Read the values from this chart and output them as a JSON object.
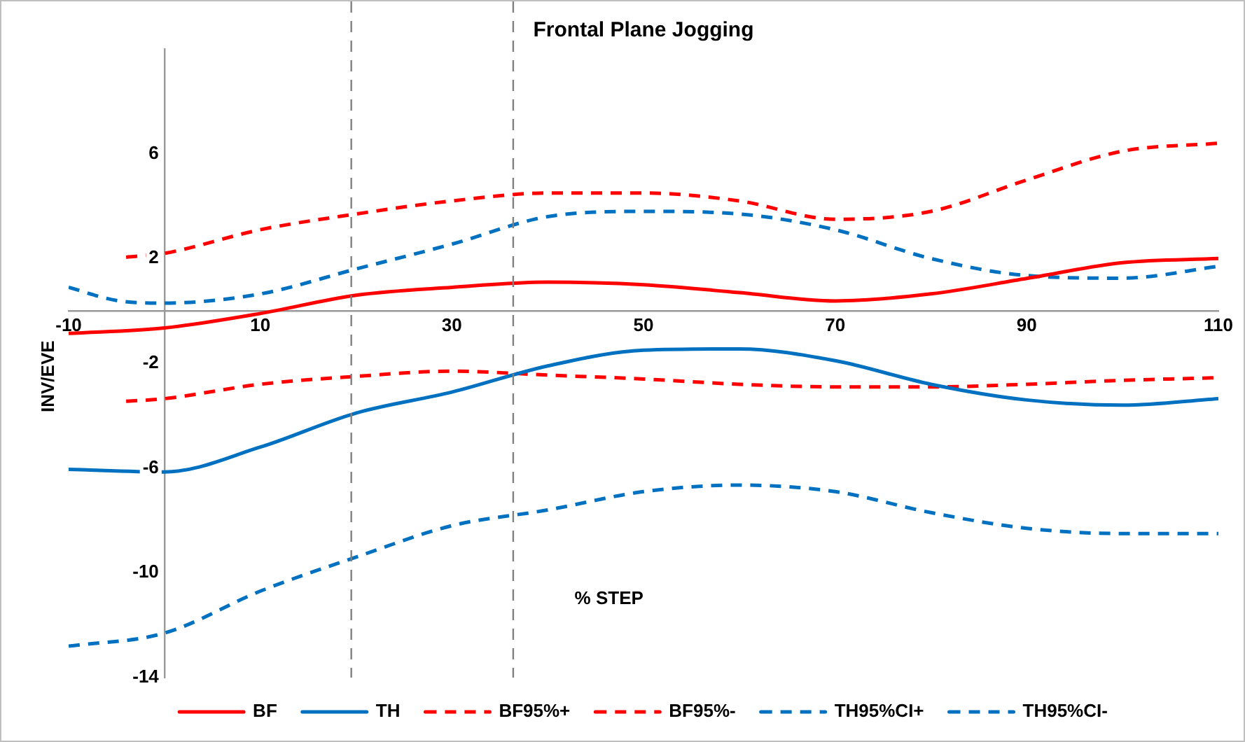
{
  "chart_data": {
    "type": "line",
    "title": "Frontal Plane Jogging",
    "xlabel": "% STEP",
    "ylabel": "INV/EVE",
    "xlim": [
      -10,
      110
    ],
    "xticks": [
      -10,
      10,
      30,
      50,
      70,
      90,
      110
    ],
    "ylim": [
      -14,
      10
    ],
    "yticks": [
      -14,
      -10,
      -6,
      -2,
      2,
      6
    ],
    "grid": false,
    "legend": "bottom",
    "marker": "none",
    "ref_lines": [
      {
        "axis": "x",
        "value": 19.5,
        "label": null,
        "color": "#808080",
        "line_style": "dashed"
      },
      {
        "axis": "x",
        "value": 36.4,
        "label": null,
        "color": "#808080",
        "line_style": "dashed"
      }
    ],
    "series": [
      {
        "name": "BF",
        "color": "#ff0000",
        "line_style": "solid",
        "x": [
          -10,
          0,
          10,
          20,
          30,
          40,
          50,
          60,
          70,
          80,
          90,
          100,
          110
        ],
        "values": [
          -0.86,
          -0.65,
          -0.1,
          0.6,
          0.9,
          1.1,
          1.0,
          0.7,
          0.38,
          0.65,
          1.24,
          1.84,
          2.0
        ]
      },
      {
        "name": "TH",
        "color": "#0070c0",
        "line_style": "solid",
        "x": [
          -10,
          0,
          10,
          20,
          30,
          40,
          50,
          60,
          70,
          80,
          90,
          100,
          110
        ],
        "values": [
          -6.05,
          -6.15,
          -5.2,
          -3.9,
          -3.1,
          -2.1,
          -1.5,
          -1.45,
          -1.9,
          -2.8,
          -3.4,
          -3.6,
          -3.35
        ]
      },
      {
        "name": "BF95%+",
        "color": "#ff0000",
        "line_style": "dashed",
        "x": [
          -4,
          0,
          10,
          20,
          30,
          40,
          50,
          60,
          70,
          80,
          90,
          100,
          110
        ],
        "values": [
          2.05,
          2.2,
          3.1,
          3.7,
          4.2,
          4.5,
          4.5,
          4.2,
          3.5,
          3.8,
          5.0,
          6.1,
          6.4
        ]
      },
      {
        "name": "BF95%-",
        "color": "#ff0000",
        "line_style": "dashed",
        "x": [
          -4,
          0,
          10,
          20,
          30,
          40,
          50,
          60,
          70,
          80,
          90,
          100,
          110
        ],
        "values": [
          -3.45,
          -3.35,
          -2.8,
          -2.5,
          -2.3,
          -2.45,
          -2.6,
          -2.8,
          -2.9,
          -2.9,
          -2.8,
          -2.65,
          -2.55
        ]
      },
      {
        "name": "TH95%CI+",
        "color": "#0070c0",
        "line_style": "dashed",
        "x": [
          -10,
          -5,
          0,
          10,
          20,
          30,
          40,
          50,
          60,
          70,
          80,
          90,
          100,
          110
        ],
        "values": [
          0.9,
          0.4,
          0.3,
          0.65,
          1.6,
          2.55,
          3.6,
          3.8,
          3.7,
          3.1,
          2.0,
          1.35,
          1.25,
          1.7
        ]
      },
      {
        "name": "TH95%CI-",
        "color": "#0070c0",
        "line_style": "dashed",
        "x": [
          -10,
          0,
          10,
          20,
          30,
          40,
          50,
          60,
          70,
          80,
          90,
          100,
          110
        ],
        "values": [
          -12.8,
          -12.3,
          -10.7,
          -9.4,
          -8.2,
          -7.6,
          -6.9,
          -6.65,
          -6.9,
          -7.7,
          -8.3,
          -8.5,
          -8.5
        ]
      }
    ]
  }
}
